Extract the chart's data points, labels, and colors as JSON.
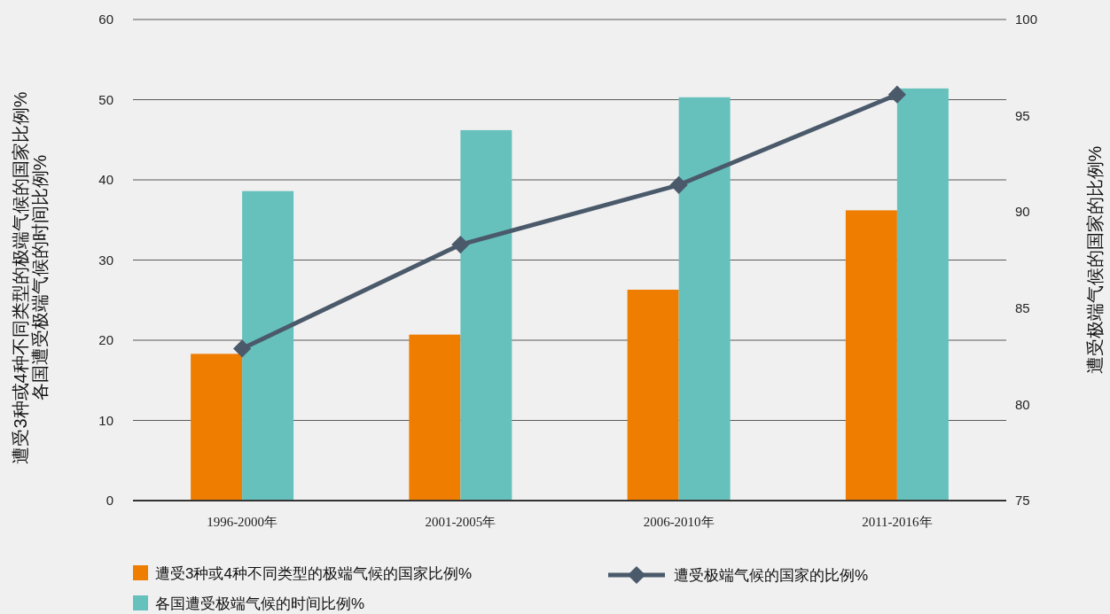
{
  "chart_data": {
    "type": "bar",
    "categories": [
      "1996-2000年",
      "2001-2005年",
      "2006-2010年",
      "2011-2016年"
    ],
    "series": [
      {
        "name": "遭受3种或4种不同类型的极端气候的国家比例%",
        "color": "#ef7d00",
        "values": [
          18.3,
          20.7,
          26.3,
          36.2
        ]
      },
      {
        "name": "各国遭受极端气候的时间比例%",
        "color": "#66c1bd",
        "values": [
          38.6,
          46.2,
          50.3,
          51.4
        ]
      },
      {
        "name": "遭受极端气候的国家的比例%",
        "type": "line",
        "axis": "y2",
        "color": "#4b5a6b",
        "marker": "diamond",
        "values": [
          82.9,
          88.3,
          91.4,
          96.1
        ]
      }
    ],
    "ylabel": "遭受3种或4种不同类型的极端气候的国家比例%\n各国遭受极端气候的时间比例%",
    "y2label": "遭受极端气候的国家的比例%",
    "ylim": [
      0,
      60
    ],
    "yticks": [
      0,
      10,
      20,
      30,
      40,
      50,
      60
    ],
    "y2lim": [
      75,
      100
    ],
    "y2ticks": [
      75,
      80,
      85,
      90,
      95,
      100
    ],
    "grid": "y",
    "legend": "bottom"
  }
}
